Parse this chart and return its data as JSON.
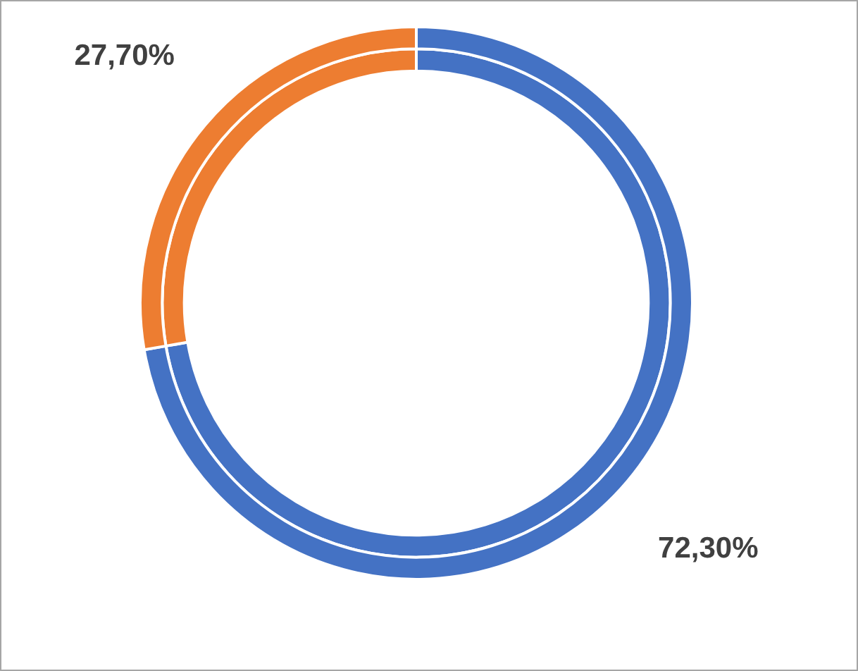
{
  "chart_data": {
    "type": "donut",
    "categories": [
      null,
      null
    ],
    "series": [
      {
        "values": [
          72.3,
          27.7
        ],
        "colors": [
          "#4472c4",
          "#ed7d31"
        ],
        "value_labels": [
          "72,30%",
          "27,70%"
        ]
      },
      {
        "values": [
          72.3,
          27.7
        ],
        "colors": [
          "#4472c4",
          "#ed7d31"
        ]
      }
    ],
    "legend": false
  }
}
